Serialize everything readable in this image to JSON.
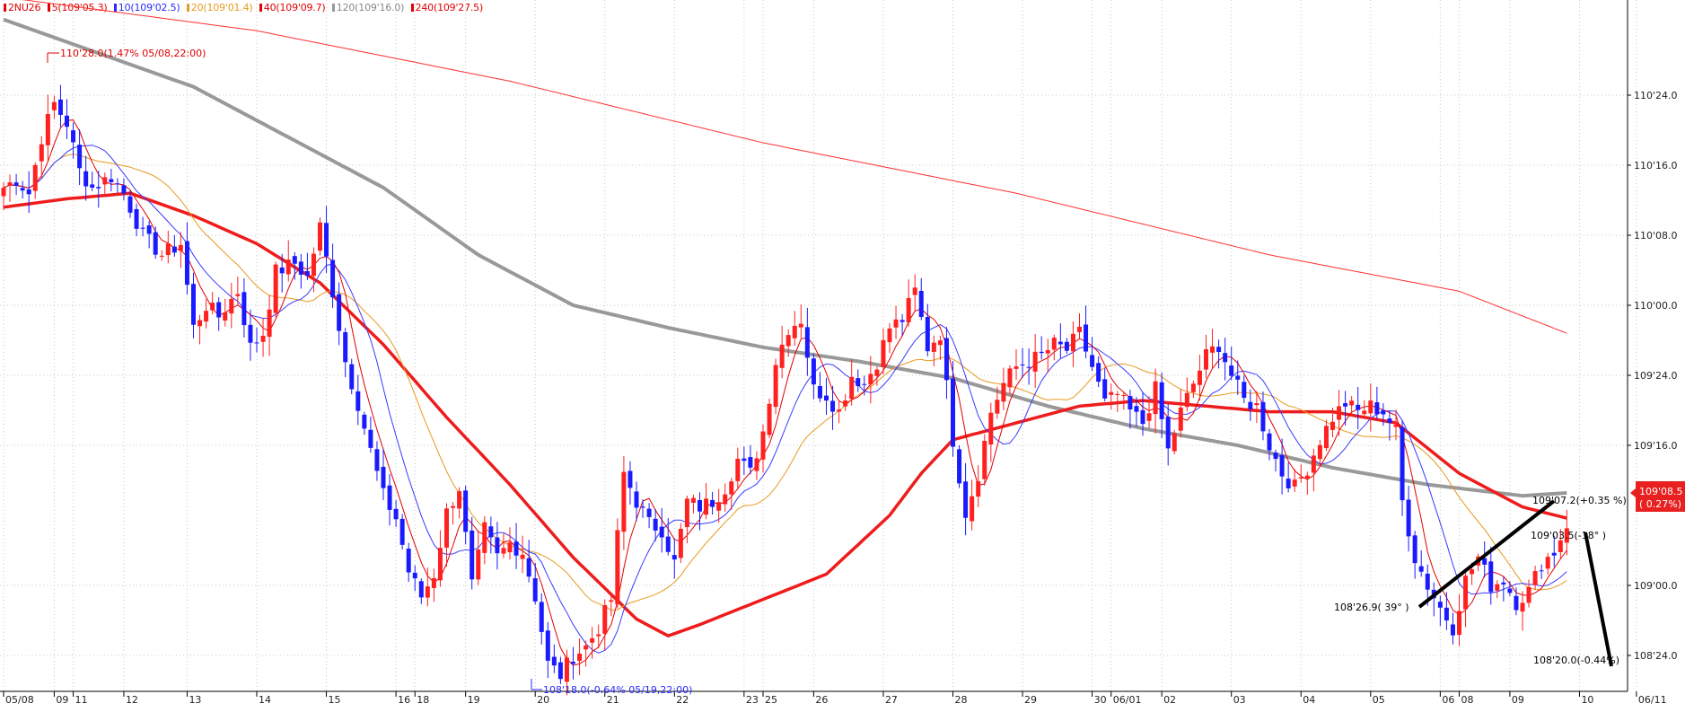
{
  "legend": {
    "symbol": "2NU26",
    "items": [
      {
        "text": "5(109'05.3)",
        "color": "#e00000"
      },
      {
        "text": "10(109'02.5)",
        "color": "#2a2aff"
      },
      {
        "text": "20(109'01.4)",
        "color": "#e69a1e"
      },
      {
        "text": "40(109'09.7)",
        "color": "#e00000"
      },
      {
        "text": "120(109'16.0)",
        "color": "#999999"
      },
      {
        "text": "240(109'27.5)",
        "color": "#e00000"
      }
    ]
  },
  "price_badge": {
    "price": "109'08.5",
    "change": "( 0.27%)",
    "color": "#e82020"
  },
  "annotations": {
    "high_label": "110'28.0(1.47% 05/08,22:00)",
    "low_label": "108'18.0(-0.64% 05/19,22:00)",
    "trend_start": "108'26.9( 39° )",
    "trend_end": "109'07.2(+0.35 %)",
    "mid_label": "109'03.5(-18° )",
    "down_end": "108'20.0(-0.44%)"
  },
  "chart_data": {
    "type": "candlestick",
    "price_unit": "32nds (e.g. 110'24.0 = 110 + 24/32)",
    "ylim": [
      108.5,
      111.0
    ],
    "y_ticks": [
      {
        "label": "110'24.0",
        "value": 110.75
      },
      {
        "label": "110'16.0",
        "value": 110.5
      },
      {
        "label": "110'08.0",
        "value": 110.25
      },
      {
        "label": "110'00.0",
        "value": 110.0
      },
      {
        "label": "109'24.0",
        "value": 109.75
      },
      {
        "label": "109'16.0",
        "value": 109.5
      },
      {
        "label": "109'00.0",
        "value": 109.0
      },
      {
        "label": "108'24.0",
        "value": 108.75
      }
    ],
    "x_ticks": [
      {
        "label": "05/08",
        "bar": 0
      },
      {
        "label": "09",
        "bar": 8
      },
      {
        "label": "11",
        "bar": 11
      },
      {
        "label": "12",
        "bar": 19
      },
      {
        "label": "13",
        "bar": 29
      },
      {
        "label": "14",
        "bar": 40
      },
      {
        "label": "15",
        "bar": 51
      },
      {
        "label": "16",
        "bar": 62
      },
      {
        "label": "18",
        "bar": 65
      },
      {
        "label": "19",
        "bar": 73
      },
      {
        "label": "20",
        "bar": 84
      },
      {
        "label": "21",
        "bar": 95
      },
      {
        "label": "22",
        "bar": 106
      },
      {
        "label": "23",
        "bar": 117
      },
      {
        "label": "25",
        "bar": 120
      },
      {
        "label": "26",
        "bar": 128
      },
      {
        "label": "27",
        "bar": 139
      },
      {
        "label": "28",
        "bar": 150
      },
      {
        "label": "29",
        "bar": 161
      },
      {
        "label": "30",
        "bar": 172
      },
      {
        "label": "06/01",
        "bar": 175
      },
      {
        "label": "02",
        "bar": 183
      },
      {
        "label": "03",
        "bar": 194
      },
      {
        "label": "04",
        "bar": 205
      },
      {
        "label": "05",
        "bar": 216
      },
      {
        "label": "06",
        "bar": 227
      },
      {
        "label": "08",
        "bar": 230
      },
      {
        "label": "09",
        "bar": 238
      },
      {
        "label": "10",
        "bar": 249
      },
      {
        "label": "06/11",
        "bar": 258
      }
    ],
    "n_slots": 259,
    "anchors": [
      [
        0,
        110.42
      ],
      [
        2,
        110.45
      ],
      [
        4,
        110.4
      ],
      [
        6,
        110.6
      ],
      [
        8,
        110.72
      ],
      [
        10,
        110.65
      ],
      [
        12,
        110.48
      ],
      [
        14,
        110.42
      ],
      [
        17,
        110.46
      ],
      [
        19,
        110.4
      ],
      [
        22,
        110.25
      ],
      [
        25,
        110.18
      ],
      [
        28,
        110.22
      ],
      [
        30,
        109.92
      ],
      [
        32,
        110.0
      ],
      [
        34,
        109.96
      ],
      [
        37,
        110.05
      ],
      [
        39,
        109.85
      ],
      [
        41,
        109.9
      ],
      [
        43,
        110.12
      ],
      [
        46,
        110.15
      ],
      [
        48,
        110.1
      ],
      [
        50,
        110.28
      ],
      [
        52,
        110.05
      ],
      [
        54,
        109.8
      ],
      [
        56,
        109.65
      ],
      [
        58,
        109.48
      ],
      [
        60,
        109.32
      ],
      [
        62,
        109.24
      ],
      [
        64,
        109.05
      ],
      [
        66,
        108.96
      ],
      [
        68,
        109.04
      ],
      [
        70,
        109.26
      ],
      [
        72,
        109.35
      ],
      [
        74,
        109.0
      ],
      [
        76,
        109.2
      ],
      [
        78,
        109.1
      ],
      [
        80,
        109.15
      ],
      [
        82,
        109.12
      ],
      [
        84,
        108.96
      ],
      [
        86,
        108.72
      ],
      [
        88,
        108.68
      ],
      [
        90,
        108.75
      ],
      [
        92,
        108.78
      ],
      [
        94,
        108.85
      ],
      [
        96,
        108.95
      ],
      [
        98,
        109.4
      ],
      [
        100,
        109.3
      ],
      [
        102,
        109.22
      ],
      [
        104,
        109.2
      ],
      [
        106,
        109.08
      ],
      [
        108,
        109.3
      ],
      [
        110,
        109.28
      ],
      [
        112,
        109.3
      ],
      [
        114,
        109.35
      ],
      [
        116,
        109.45
      ],
      [
        118,
        109.4
      ],
      [
        120,
        109.55
      ],
      [
        122,
        109.8
      ],
      [
        124,
        109.92
      ],
      [
        126,
        109.95
      ],
      [
        128,
        109.7
      ],
      [
        130,
        109.68
      ],
      [
        132,
        109.62
      ],
      [
        134,
        109.75
      ],
      [
        136,
        109.72
      ],
      [
        138,
        109.8
      ],
      [
        140,
        109.92
      ],
      [
        142,
        109.95
      ],
      [
        144,
        110.05
      ],
      [
        146,
        109.85
      ],
      [
        148,
        109.9
      ],
      [
        150,
        109.52
      ],
      [
        152,
        109.26
      ],
      [
        154,
        109.4
      ],
      [
        156,
        109.62
      ],
      [
        158,
        109.72
      ],
      [
        160,
        109.78
      ],
      [
        162,
        109.8
      ],
      [
        164,
        109.82
      ],
      [
        166,
        109.86
      ],
      [
        168,
        109.84
      ],
      [
        170,
        109.9
      ],
      [
        172,
        109.78
      ],
      [
        174,
        109.65
      ],
      [
        176,
        109.68
      ],
      [
        178,
        109.62
      ],
      [
        180,
        109.58
      ],
      [
        182,
        109.7
      ],
      [
        184,
        109.48
      ],
      [
        186,
        109.62
      ],
      [
        188,
        109.72
      ],
      [
        190,
        109.82
      ],
      [
        192,
        109.86
      ],
      [
        194,
        109.75
      ],
      [
        196,
        109.66
      ],
      [
        198,
        109.64
      ],
      [
        200,
        109.5
      ],
      [
        202,
        109.4
      ],
      [
        204,
        109.35
      ],
      [
        206,
        109.42
      ],
      [
        208,
        109.52
      ],
      [
        210,
        109.6
      ],
      [
        212,
        109.65
      ],
      [
        214,
        109.62
      ],
      [
        216,
        109.64
      ],
      [
        218,
        109.62
      ],
      [
        220,
        109.55
      ],
      [
        221,
        109.3
      ],
      [
        223,
        109.1
      ],
      [
        225,
        109.0
      ],
      [
        227,
        108.92
      ],
      [
        229,
        108.85
      ],
      [
        231,
        109.02
      ],
      [
        233,
        109.1
      ],
      [
        235,
        109.0
      ],
      [
        237,
        109.02
      ],
      [
        239,
        108.94
      ],
      [
        241,
        108.98
      ],
      [
        243,
        109.08
      ],
      [
        245,
        109.12
      ],
      [
        247,
        109.22
      ]
    ],
    "ma_anchors": {
      "ma240": [
        [
          0,
          111.1
        ],
        [
          40,
          110.98
        ],
        [
          80,
          110.8
        ],
        [
          120,
          110.58
        ],
        [
          160,
          110.4
        ],
        [
          200,
          110.18
        ],
        [
          230,
          110.05
        ],
        [
          247,
          109.9
        ]
      ],
      "ma120": [
        [
          0,
          111.02
        ],
        [
          15,
          110.9
        ],
        [
          30,
          110.78
        ],
        [
          45,
          110.6
        ],
        [
          60,
          110.42
        ],
        [
          75,
          110.18
        ],
        [
          90,
          110.0
        ],
        [
          105,
          109.92
        ],
        [
          120,
          109.85
        ],
        [
          135,
          109.8
        ],
        [
          150,
          109.74
        ],
        [
          165,
          109.64
        ],
        [
          180,
          109.56
        ],
        [
          195,
          109.5
        ],
        [
          210,
          109.42
        ],
        [
          225,
          109.36
        ],
        [
          240,
          109.32
        ],
        [
          247,
          109.33
        ]
      ],
      "ma40": [
        [
          0,
          110.35
        ],
        [
          10,
          110.38
        ],
        [
          20,
          110.4
        ],
        [
          30,
          110.32
        ],
        [
          40,
          110.22
        ],
        [
          50,
          110.08
        ],
        [
          60,
          109.86
        ],
        [
          70,
          109.6
        ],
        [
          80,
          109.36
        ],
        [
          90,
          109.1
        ],
        [
          100,
          108.88
        ],
        [
          105,
          108.82
        ],
        [
          110,
          108.86
        ],
        [
          120,
          108.95
        ],
        [
          130,
          109.04
        ],
        [
          140,
          109.25
        ],
        [
          145,
          109.4
        ],
        [
          150,
          109.52
        ],
        [
          160,
          109.58
        ],
        [
          170,
          109.64
        ],
        [
          180,
          109.66
        ],
        [
          190,
          109.64
        ],
        [
          200,
          109.62
        ],
        [
          210,
          109.62
        ],
        [
          220,
          109.58
        ],
        [
          230,
          109.4
        ],
        [
          240,
          109.28
        ],
        [
          247,
          109.24
        ]
      ]
    }
  }
}
